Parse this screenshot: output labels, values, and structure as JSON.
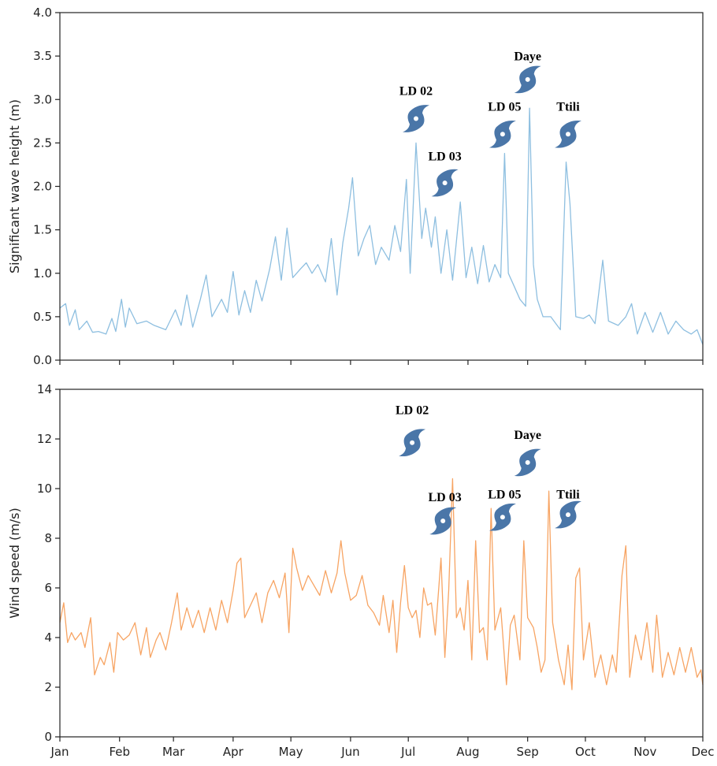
{
  "chart_data": [
    {
      "type": "line",
      "ylabel": "Significant wave height (m)",
      "xlabel": "",
      "ylim": [
        0,
        4
      ],
      "yticks": [
        "0.0",
        "0.5",
        "1.0",
        "1.5",
        "2.0",
        "2.5",
        "3.0",
        "3.5",
        "4.0"
      ],
      "xlim": [
        0,
        334
      ],
      "x_ticks": [
        0,
        31,
        59,
        90,
        120,
        151,
        181,
        212,
        243,
        273,
        304,
        334
      ],
      "x_tick_labels": [],
      "grid": false,
      "series": [
        {
          "color": "#8ebfe0",
          "points": [
            [
              0,
              0.6
            ],
            [
              3,
              0.65
            ],
            [
              5,
              0.4
            ],
            [
              8,
              0.58
            ],
            [
              10,
              0.35
            ],
            [
              14,
              0.45
            ],
            [
              17,
              0.32
            ],
            [
              20,
              0.33
            ],
            [
              24,
              0.3
            ],
            [
              27,
              0.48
            ],
            [
              29,
              0.33
            ],
            [
              32,
              0.7
            ],
            [
              34,
              0.38
            ],
            [
              36,
              0.6
            ],
            [
              40,
              0.42
            ],
            [
              45,
              0.45
            ],
            [
              49,
              0.4
            ],
            [
              55,
              0.35
            ],
            [
              60,
              0.58
            ],
            [
              63,
              0.4
            ],
            [
              66,
              0.75
            ],
            [
              69,
              0.38
            ],
            [
              73,
              0.7
            ],
            [
              76,
              0.98
            ],
            [
              79,
              0.5
            ],
            [
              84,
              0.7
            ],
            [
              87,
              0.55
            ],
            [
              90,
              1.02
            ],
            [
              93,
              0.52
            ],
            [
              96,
              0.8
            ],
            [
              99,
              0.55
            ],
            [
              102,
              0.92
            ],
            [
              105,
              0.68
            ],
            [
              109,
              1.05
            ],
            [
              112,
              1.42
            ],
            [
              115,
              0.92
            ],
            [
              118,
              1.52
            ],
            [
              121,
              0.95
            ],
            [
              125,
              1.05
            ],
            [
              128,
              1.12
            ],
            [
              131,
              1.0
            ],
            [
              134,
              1.1
            ],
            [
              138,
              0.9
            ],
            [
              141,
              1.4
            ],
            [
              144,
              0.75
            ],
            [
              147,
              1.35
            ],
            [
              150,
              1.75
            ],
            [
              152,
              2.1
            ],
            [
              155,
              1.2
            ],
            [
              158,
              1.4
            ],
            [
              161,
              1.55
            ],
            [
              164,
              1.1
            ],
            [
              167,
              1.3
            ],
            [
              171,
              1.15
            ],
            [
              174,
              1.55
            ],
            [
              177,
              1.25
            ],
            [
              180,
              2.08
            ],
            [
              182,
              1.0
            ],
            [
              185,
              2.5
            ],
            [
              188,
              1.4
            ],
            [
              190,
              1.75
            ],
            [
              193,
              1.3
            ],
            [
              195,
              1.65
            ],
            [
              198,
              1.0
            ],
            [
              201,
              1.5
            ],
            [
              204,
              0.92
            ],
            [
              208,
              1.82
            ],
            [
              211,
              0.95
            ],
            [
              214,
              1.3
            ],
            [
              217,
              0.88
            ],
            [
              220,
              1.32
            ],
            [
              223,
              0.9
            ],
            [
              226,
              1.1
            ],
            [
              229,
              0.95
            ],
            [
              231,
              2.38
            ],
            [
              233,
              1.0
            ],
            [
              236,
              0.85
            ],
            [
              239,
              0.7
            ],
            [
              242,
              0.62
            ],
            [
              244,
              2.9
            ],
            [
              246,
              1.1
            ],
            [
              248,
              0.7
            ],
            [
              251,
              0.5
            ],
            [
              255,
              0.5
            ],
            [
              260,
              0.35
            ],
            [
              263,
              2.28
            ],
            [
              265,
              1.8
            ],
            [
              268,
              0.5
            ],
            [
              272,
              0.48
            ],
            [
              275,
              0.52
            ],
            [
              278,
              0.42
            ],
            [
              282,
              1.15
            ],
            [
              285,
              0.45
            ],
            [
              290,
              0.4
            ],
            [
              294,
              0.5
            ],
            [
              297,
              0.65
            ],
            [
              300,
              0.3
            ],
            [
              304,
              0.55
            ],
            [
              308,
              0.32
            ],
            [
              312,
              0.55
            ],
            [
              316,
              0.3
            ],
            [
              320,
              0.45
            ],
            [
              324,
              0.35
            ],
            [
              328,
              0.3
            ],
            [
              331,
              0.35
            ],
            [
              334,
              0.18
            ]
          ]
        }
      ],
      "annotations": [
        {
          "label": "LD 02",
          "x": 185,
          "y": 3.05,
          "icon_x": 185,
          "icon_y": 2.78
        },
        {
          "label": "LD 03",
          "x": 200,
          "y": 2.3,
          "icon_x": 200,
          "icon_y": 2.04
        },
        {
          "label": "LD 05",
          "x": 231,
          "y": 2.87,
          "icon_x": 230,
          "icon_y": 2.6
        },
        {
          "label": "Daye",
          "x": 243,
          "y": 3.45,
          "icon_x": 243,
          "icon_y": 3.23
        },
        {
          "label": "Ttili",
          "x": 264,
          "y": 2.87,
          "icon_x": 264,
          "icon_y": 2.6
        }
      ]
    },
    {
      "type": "line",
      "ylabel": "Wind speed (m/s)",
      "xlabel": "",
      "ylim": [
        0,
        14
      ],
      "yticks": [
        "0",
        "2",
        "4",
        "6",
        "8",
        "10",
        "12",
        "14"
      ],
      "xlim": [
        0,
        334
      ],
      "x_ticks": [
        0,
        31,
        59,
        90,
        120,
        151,
        181,
        212,
        243,
        273,
        304,
        334
      ],
      "x_tick_labels": [
        "Jan",
        "Feb",
        "Mar",
        "Apr",
        "May",
        "Jun",
        "Jul",
        "Aug",
        "Sep",
        "Oct",
        "Nov",
        "Dec"
      ],
      "grid": false,
      "series": [
        {
          "color": "#f7a463",
          "points": [
            [
              0,
              4.6
            ],
            [
              2,
              5.4
            ],
            [
              4,
              3.8
            ],
            [
              6,
              4.2
            ],
            [
              8,
              3.9
            ],
            [
              11,
              4.2
            ],
            [
              13,
              3.6
            ],
            [
              16,
              4.8
            ],
            [
              18,
              2.5
            ],
            [
              21,
              3.2
            ],
            [
              23,
              2.9
            ],
            [
              26,
              3.8
            ],
            [
              28,
              2.6
            ],
            [
              30,
              4.2
            ],
            [
              33,
              3.9
            ],
            [
              36,
              4.1
            ],
            [
              39,
              4.6
            ],
            [
              42,
              3.3
            ],
            [
              45,
              4.4
            ],
            [
              47,
              3.2
            ],
            [
              50,
              3.9
            ],
            [
              52,
              4.2
            ],
            [
              55,
              3.5
            ],
            [
              58,
              4.6
            ],
            [
              61,
              5.8
            ],
            [
              63,
              4.3
            ],
            [
              66,
              5.2
            ],
            [
              69,
              4.4
            ],
            [
              72,
              5.1
            ],
            [
              75,
              4.2
            ],
            [
              78,
              5.2
            ],
            [
              81,
              4.3
            ],
            [
              84,
              5.5
            ],
            [
              87,
              4.6
            ],
            [
              90,
              5.9
            ],
            [
              92,
              7.0
            ],
            [
              94,
              7.2
            ],
            [
              96,
              4.8
            ],
            [
              99,
              5.3
            ],
            [
              102,
              5.8
            ],
            [
              105,
              4.6
            ],
            [
              108,
              5.8
            ],
            [
              111,
              6.3
            ],
            [
              114,
              5.6
            ],
            [
              117,
              6.6
            ],
            [
              119,
              4.2
            ],
            [
              121,
              7.6
            ],
            [
              123,
              6.8
            ],
            [
              126,
              5.9
            ],
            [
              129,
              6.5
            ],
            [
              132,
              6.1
            ],
            [
              135,
              5.7
            ],
            [
              138,
              6.7
            ],
            [
              141,
              5.8
            ],
            [
              144,
              6.6
            ],
            [
              146,
              7.9
            ],
            [
              148,
              6.6
            ],
            [
              151,
              5.5
            ],
            [
              154,
              5.7
            ],
            [
              157,
              6.5
            ],
            [
              160,
              5.3
            ],
            [
              163,
              5.0
            ],
            [
              166,
              4.5
            ],
            [
              168,
              5.7
            ],
            [
              171,
              4.2
            ],
            [
              173,
              5.5
            ],
            [
              175,
              3.4
            ],
            [
              177,
              5.4
            ],
            [
              179,
              6.9
            ],
            [
              181,
              5.2
            ],
            [
              183,
              4.8
            ],
            [
              185,
              5.1
            ],
            [
              187,
              4.0
            ],
            [
              189,
              6.0
            ],
            [
              191,
              5.3
            ],
            [
              193,
              5.4
            ],
            [
              195,
              4.1
            ],
            [
              198,
              7.2
            ],
            [
              200,
              3.2
            ],
            [
              202,
              5.9
            ],
            [
              204,
              10.4
            ],
            [
              206,
              4.8
            ],
            [
              208,
              5.2
            ],
            [
              210,
              4.3
            ],
            [
              212,
              6.3
            ],
            [
              214,
              3.1
            ],
            [
              216,
              7.9
            ],
            [
              218,
              4.2
            ],
            [
              220,
              4.4
            ],
            [
              222,
              3.1
            ],
            [
              224,
              9.2
            ],
            [
              226,
              4.3
            ],
            [
              229,
              5.2
            ],
            [
              232,
              2.1
            ],
            [
              234,
              4.5
            ],
            [
              236,
              4.9
            ],
            [
              239,
              3.1
            ],
            [
              241,
              7.9
            ],
            [
              243,
              4.8
            ],
            [
              246,
              4.4
            ],
            [
              248,
              3.6
            ],
            [
              250,
              2.6
            ],
            [
              252,
              3.1
            ],
            [
              254,
              9.9
            ],
            [
              256,
              4.6
            ],
            [
              259,
              3.1
            ],
            [
              262,
              2.1
            ],
            [
              264,
              3.7
            ],
            [
              266,
              1.9
            ],
            [
              268,
              6.4
            ],
            [
              270,
              6.8
            ],
            [
              272,
              3.1
            ],
            [
              275,
              4.6
            ],
            [
              278,
              2.4
            ],
            [
              281,
              3.3
            ],
            [
              284,
              2.1
            ],
            [
              287,
              3.3
            ],
            [
              289,
              2.6
            ],
            [
              292,
              6.5
            ],
            [
              294,
              7.7
            ],
            [
              296,
              2.4
            ],
            [
              299,
              4.1
            ],
            [
              302,
              3.1
            ],
            [
              305,
              4.6
            ],
            [
              308,
              2.6
            ],
            [
              310,
              4.9
            ],
            [
              313,
              2.4
            ],
            [
              316,
              3.4
            ],
            [
              319,
              2.5
            ],
            [
              322,
              3.6
            ],
            [
              325,
              2.6
            ],
            [
              328,
              3.6
            ],
            [
              331,
              2.4
            ],
            [
              333,
              2.7
            ],
            [
              334,
              2.1
            ]
          ]
        }
      ],
      "annotations": [
        {
          "label": "LD 02",
          "x": 183,
          "y": 13.0,
          "icon_x": 183,
          "icon_y": 11.85
        },
        {
          "label": "LD 03",
          "x": 200,
          "y": 9.5,
          "icon_x": 199,
          "icon_y": 8.7
        },
        {
          "label": "LD 05",
          "x": 231,
          "y": 9.6,
          "icon_x": 230,
          "icon_y": 8.85
        },
        {
          "label": "Daye",
          "x": 243,
          "y": 12.0,
          "icon_x": 243,
          "icon_y": 11.05
        },
        {
          "label": "Ttili",
          "x": 264,
          "y": 9.6,
          "icon_x": 264,
          "icon_y": 8.95
        }
      ]
    }
  ],
  "colors": {
    "axis": "#222222",
    "storm_icon": "#4a76a8",
    "storm_eye": "#ffffff"
  },
  "icons": {
    "storm": "tropical-storm-icon"
  }
}
